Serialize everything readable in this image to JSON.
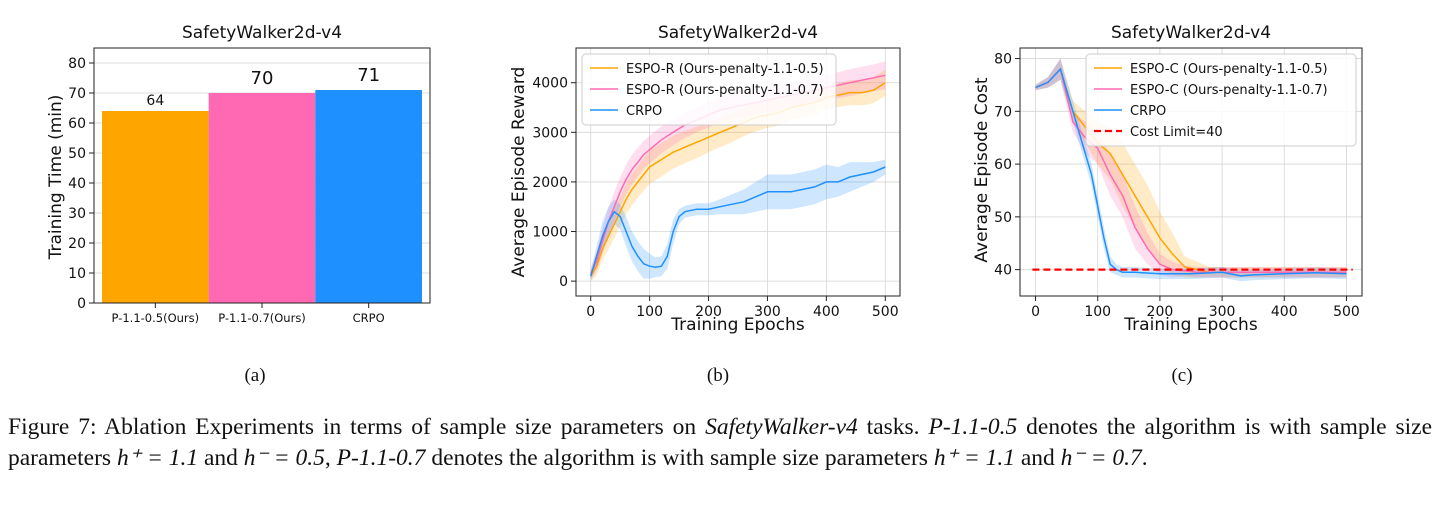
{
  "panels": [
    "(a)",
    "(b)",
    "(c)"
  ],
  "caption": {
    "l1a": "Figure 7: Ablation Experiments in terms of sample size parameters on ",
    "l1b": "SafetyWalker-v4",
    "l1c": " tasks. ",
    "l1d": "P-1.1-0.5",
    "l1e": " denotes the algorithm is with sample size parameters ",
    "m1": "h⁺ = 1.1",
    "l1f": " and ",
    "m2": "h⁻ = 0.5",
    "l1g": ", ",
    "l1h": "P-1.1-0.7",
    "l1i": " denotes the algorithm is with sample size parameters ",
    "m3": "h⁺ = 1.1",
    "l1j": " and ",
    "m4": "h⁻ = 0.7",
    "l1k": "."
  },
  "colors": {
    "orange": "#ffa500",
    "pink": "#ff69b4",
    "blue": "#1e90ff",
    "red": "#ff0000"
  },
  "chart_data": [
    {
      "type": "bar",
      "title": "SafetyWalker2d-v4",
      "ylabel": "Training Time (min)",
      "xlabel": "",
      "ylim": [
        0,
        85
      ],
      "yticks": [
        0,
        10,
        20,
        30,
        40,
        50,
        60,
        70,
        80
      ],
      "categories": [
        "P-1.1-0.5(Ours)",
        "P-1.1-0.7(Ours)",
        "CRPO"
      ],
      "values": [
        64,
        70,
        71
      ],
      "value_labels": [
        "64",
        "70",
        "71"
      ],
      "bar_colors": [
        "#ffa500",
        "#ff69b4",
        "#1e90ff"
      ],
      "grid": true
    },
    {
      "type": "line",
      "title": "SafetyWalker2d-v4",
      "xlabel": "Training Epochs",
      "ylabel": "Average Episode Reward",
      "xlim": [
        -25,
        525
      ],
      "ylim": [
        -300,
        4700
      ],
      "xticks": [
        0,
        100,
        200,
        300,
        400,
        500
      ],
      "yticks": [
        0,
        1000,
        2000,
        3000,
        4000
      ],
      "legend": "top-left",
      "grid": true,
      "series": [
        {
          "name": "ESPO-R (Ours-penalty-1.1-0.5)",
          "color": "#ffa500",
          "x": [
            0,
            10,
            20,
            30,
            40,
            50,
            60,
            70,
            80,
            90,
            100,
            120,
            140,
            160,
            180,
            200,
            220,
            240,
            260,
            280,
            300,
            320,
            340,
            360,
            380,
            400,
            420,
            440,
            460,
            480,
            500
          ],
          "y": [
            100,
            300,
            650,
            900,
            1150,
            1400,
            1650,
            1850,
            2000,
            2150,
            2300,
            2450,
            2600,
            2700,
            2800,
            2900,
            3000,
            3100,
            3200,
            3300,
            3350,
            3400,
            3500,
            3550,
            3600,
            3700,
            3750,
            3800,
            3800,
            3850,
            4000
          ],
          "band": [
            120,
            180,
            220,
            260,
            280,
            300,
            300,
            320,
            320,
            330,
            340,
            340,
            330,
            320,
            320,
            300,
            300,
            300,
            280,
            280,
            260,
            260,
            250,
            250,
            250,
            240,
            240,
            250,
            260,
            260,
            260
          ]
        },
        {
          "name": "ESPO-R (Ours-penalty-1.1-0.7)",
          "color": "#ff69b4",
          "x": [
            0,
            10,
            20,
            30,
            40,
            50,
            60,
            70,
            80,
            90,
            100,
            120,
            140,
            160,
            180,
            200,
            220,
            240,
            260,
            280,
            300,
            320,
            340,
            360,
            380,
            400,
            420,
            440,
            460,
            480,
            500
          ],
          "y": [
            150,
            400,
            800,
            1200,
            1500,
            1800,
            2050,
            2250,
            2400,
            2550,
            2650,
            2850,
            3000,
            3150,
            3250,
            3350,
            3450,
            3500,
            3550,
            3600,
            3650,
            3700,
            3750,
            3800,
            3850,
            3900,
            3950,
            4000,
            4050,
            4100,
            4150
          ],
          "band": [
            120,
            200,
            260,
            280,
            300,
            300,
            300,
            300,
            290,
            280,
            280,
            270,
            260,
            260,
            250,
            250,
            250,
            240,
            240,
            240,
            240,
            250,
            250,
            250,
            260,
            260,
            260,
            270,
            270,
            270,
            280
          ]
        },
        {
          "name": "CRPO",
          "color": "#1e90ff",
          "x": [
            0,
            10,
            20,
            30,
            40,
            50,
            60,
            70,
            80,
            90,
            100,
            110,
            120,
            130,
            140,
            150,
            160,
            180,
            200,
            220,
            240,
            260,
            280,
            300,
            320,
            340,
            360,
            380,
            400,
            420,
            440,
            460,
            480,
            500
          ],
          "y": [
            100,
            500,
            900,
            1200,
            1400,
            1300,
            1000,
            700,
            500,
            350,
            300,
            280,
            300,
            500,
            1000,
            1300,
            1400,
            1450,
            1450,
            1500,
            1550,
            1600,
            1700,
            1800,
            1800,
            1800,
            1850,
            1900,
            2000,
            2000,
            2100,
            2150,
            2200,
            2300
          ],
          "band": [
            100,
            200,
            300,
            300,
            250,
            250,
            300,
            300,
            300,
            300,
            250,
            200,
            200,
            250,
            250,
            150,
            120,
            120,
            120,
            150,
            200,
            250,
            300,
            350,
            350,
            350,
            350,
            350,
            350,
            300,
            300,
            250,
            200,
            150
          ]
        }
      ]
    },
    {
      "type": "line",
      "title": "SafetyWalker2d-v4",
      "xlabel": "Training Epochs",
      "ylabel": "Average Episode Cost",
      "xlim": [
        -25,
        525
      ],
      "ylim": [
        35,
        82
      ],
      "xticks": [
        0,
        100,
        200,
        300,
        400,
        500
      ],
      "yticks": [
        40,
        50,
        60,
        70,
        80
      ],
      "legend": "top-right",
      "grid": true,
      "series": [
        {
          "name": "ESPO-C (Ours-penalty-1.1-0.5)",
          "color": "#ffa500",
          "x": [
            0,
            20,
            40,
            60,
            80,
            100,
            120,
            140,
            160,
            180,
            200,
            220,
            240,
            260,
            280,
            300,
            350,
            400,
            450,
            500
          ],
          "y": [
            74.5,
            75.5,
            78,
            70,
            67,
            64,
            62,
            58,
            54,
            50,
            46,
            43,
            40.5,
            40,
            39.5,
            39.5,
            39.5,
            39.5,
            39.5,
            39.5
          ],
          "band": [
            0.5,
            1,
            2,
            2,
            3,
            4,
            5,
            6,
            6,
            6,
            5,
            4,
            2,
            1.5,
            1,
            1,
            1,
            1,
            1,
            1
          ]
        },
        {
          "name": "ESPO-C (Ours-penalty-1.1-0.7)",
          "color": "#ff69b4",
          "x": [
            0,
            20,
            40,
            60,
            80,
            100,
            120,
            140,
            160,
            180,
            200,
            220,
            240,
            260,
            280,
            300,
            350,
            400,
            450,
            500
          ],
          "y": [
            74.5,
            75.5,
            78,
            68,
            65,
            63,
            58,
            54,
            48,
            44,
            41,
            40,
            39.8,
            39.5,
            39.5,
            39.5,
            39.5,
            39.5,
            39.5,
            39.5
          ],
          "band": [
            0.5,
            1,
            2,
            2,
            3,
            3,
            4,
            4,
            4,
            3,
            2,
            1.5,
            1,
            1,
            1,
            1,
            1,
            1,
            1,
            1
          ]
        },
        {
          "name": "CRPO",
          "color": "#1e90ff",
          "x": [
            0,
            20,
            40,
            50,
            60,
            70,
            80,
            90,
            100,
            110,
            120,
            130,
            140,
            160,
            200,
            250,
            300,
            330,
            350,
            400,
            450,
            500
          ],
          "y": [
            74.5,
            75.5,
            78,
            74,
            70,
            66,
            62,
            58,
            52,
            46,
            41,
            40,
            39.5,
            39.5,
            39.2,
            39.2,
            39.5,
            38.8,
            39.0,
            39.2,
            39.4,
            39.2
          ],
          "band": [
            0.5,
            1,
            2,
            2,
            2,
            2,
            2,
            2,
            2,
            2,
            1.5,
            1,
            1,
            1,
            1,
            1,
            1,
            1,
            1,
            1,
            1,
            1
          ]
        },
        {
          "name": "Cost Limit=40",
          "color": "#ff0000",
          "dashed": true,
          "x": [
            -5,
            510
          ],
          "y": [
            40,
            40
          ]
        }
      ]
    }
  ]
}
